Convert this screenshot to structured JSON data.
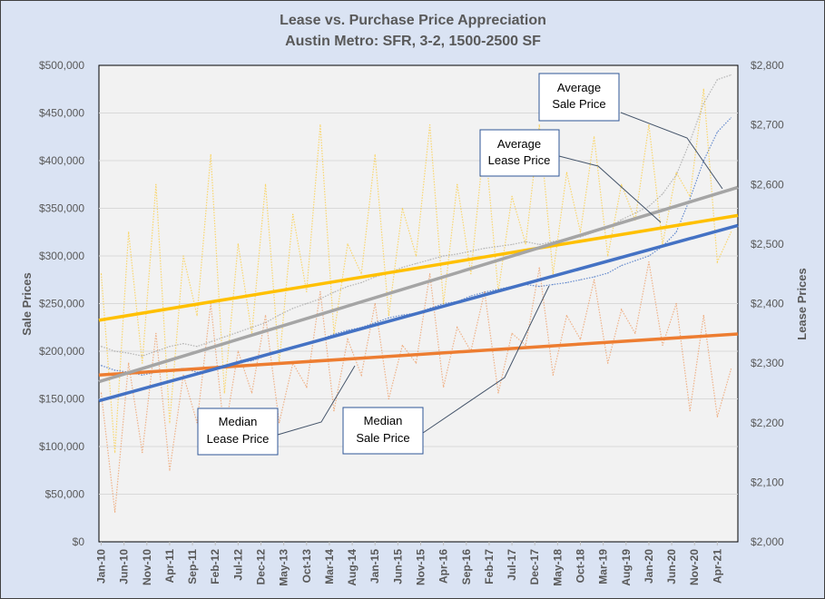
{
  "chart_data": {
    "type": "line",
    "title": [
      "Lease vs. Purchase Price Appreciation",
      "Austin Metro:  SFR, 3-2, 1500-2500 SF"
    ],
    "ylabel": "Sale Prices",
    "y2label": "Lease Prices",
    "ylim": [
      0,
      500000
    ],
    "y2lim": [
      2000,
      2800
    ],
    "yticks": [
      "$0",
      "$50,000",
      "$100,000",
      "$150,000",
      "$200,000",
      "$250,000",
      "$300,000",
      "$350,000",
      "$400,000",
      "$450,000",
      "$500,000"
    ],
    "y2ticks": [
      "$2,000",
      "$2,100",
      "$2,200",
      "$2,300",
      "$2,400",
      "$2,500",
      "$2,600",
      "$2,700",
      "$2,800"
    ],
    "xticks": [
      "Jan-10",
      "Jun-10",
      "Nov-10",
      "Apr-11",
      "Sep-11",
      "Feb-12",
      "Jul-12",
      "Dec-12",
      "May-13",
      "Oct-13",
      "Mar-14",
      "Aug-14",
      "Jan-15",
      "Jun-15",
      "Nov-15",
      "Apr-16",
      "Sep-16",
      "Feb-17",
      "Jul-17",
      "Dec-17",
      "May-18",
      "Oct-18",
      "Mar-19",
      "Aug-19",
      "Jan-20",
      "Jun-20",
      "Nov-20",
      "Apr-21"
    ],
    "grid": true,
    "dates": [
      "Jan-10",
      "Apr-10",
      "Jul-10",
      "Oct-10",
      "Jan-11",
      "Apr-11",
      "Jul-11",
      "Oct-11",
      "Jan-12",
      "Apr-12",
      "Jul-12",
      "Oct-12",
      "Jan-13",
      "Apr-13",
      "Jul-13",
      "Oct-13",
      "Jan-14",
      "Apr-14",
      "Jul-14",
      "Oct-14",
      "Jan-15",
      "Apr-15",
      "Jul-15",
      "Oct-15",
      "Jan-16",
      "Apr-16",
      "Jul-16",
      "Oct-16",
      "Jan-17",
      "Apr-17",
      "Jul-17",
      "Oct-17",
      "Jan-18",
      "Apr-18",
      "Jul-18",
      "Oct-18",
      "Jan-19",
      "Apr-19",
      "Jul-19",
      "Oct-19",
      "Jan-20",
      "Apr-20",
      "Jul-20",
      "Oct-20",
      "Jan-21",
      "Apr-21",
      "Jul-21"
    ],
    "series": [
      {
        "name": "Median Sale Price",
        "axis": "left",
        "color": "#4472c4",
        "values": [
          185000,
          180000,
          178000,
          175000,
          178000,
          180000,
          182000,
          178000,
          180000,
          185000,
          188000,
          190000,
          195000,
          200000,
          205000,
          208000,
          212000,
          218000,
          222000,
          225000,
          230000,
          235000,
          238000,
          240000,
          245000,
          250000,
          252000,
          258000,
          262000,
          265000,
          268000,
          270000,
          268000,
          270000,
          272000,
          275000,
          278000,
          282000,
          290000,
          295000,
          300000,
          310000,
          325000,
          360000,
          400000,
          430000,
          445000
        ]
      },
      {
        "name": "Average Sale Price",
        "axis": "left",
        "color": "#a5a5a5",
        "values": [
          205000,
          200000,
          198000,
          195000,
          200000,
          205000,
          208000,
          205000,
          210000,
          215000,
          220000,
          225000,
          230000,
          238000,
          245000,
          250000,
          255000,
          262000,
          268000,
          272000,
          278000,
          282000,
          288000,
          292000,
          296000,
          300000,
          302000,
          305000,
          308000,
          310000,
          312000,
          315000,
          312000,
          315000,
          318000,
          320000,
          325000,
          330000,
          338000,
          345000,
          352000,
          365000,
          385000,
          420000,
          460000,
          485000,
          490000
        ]
      },
      {
        "name": "Average Lease Price",
        "axis": "right",
        "color": "#ffc000",
        "values": [
          2450,
          2150,
          2520,
          2300,
          2600,
          2200,
          2480,
          2380,
          2650,
          2250,
          2500,
          2350,
          2600,
          2300,
          2550,
          2420,
          2700,
          2350,
          2500,
          2450,
          2650,
          2380,
          2560,
          2480,
          2700,
          2400,
          2600,
          2450,
          2680,
          2420,
          2580,
          2500,
          2700,
          2450,
          2620,
          2520,
          2680,
          2480,
          2600,
          2540,
          2700,
          2500,
          2620,
          2580,
          2760,
          2470,
          2520
        ]
      },
      {
        "name": "Median Lease Price",
        "axis": "right",
        "color": "#ed7d31",
        "values": [
          2250,
          2050,
          2300,
          2150,
          2350,
          2120,
          2280,
          2200,
          2400,
          2180,
          2320,
          2250,
          2380,
          2200,
          2300,
          2260,
          2420,
          2220,
          2340,
          2280,
          2400,
          2240,
          2330,
          2300,
          2450,
          2260,
          2360,
          2320,
          2420,
          2250,
          2350,
          2330,
          2460,
          2280,
          2380,
          2340,
          2440,
          2300,
          2390,
          2350,
          2470,
          2330,
          2400,
          2220,
          2380,
          2210,
          2290
        ]
      }
    ],
    "trendlines": [
      {
        "series": "Median Sale Price",
        "axis": "left",
        "color": "#4472c4",
        "start": 148000,
        "end": 332000
      },
      {
        "series": "Average Sale Price",
        "axis": "left",
        "color": "#a5a5a5",
        "start": 168000,
        "end": 372000
      },
      {
        "series": "Average Lease Price",
        "axis": "right",
        "color": "#ffc000",
        "start": 2372,
        "end": 2548
      },
      {
        "series": "Median Lease Price",
        "axis": "right",
        "color": "#ed7d31",
        "start": 2280,
        "end": 2349
      }
    ],
    "annotations": [
      {
        "line1": "Average",
        "line2": "Sale Price"
      },
      {
        "line1": "Average",
        "line2": "Lease Price"
      },
      {
        "line1": "Median",
        "line2": "Lease Price"
      },
      {
        "line1": "Median",
        "line2": "Sale Price"
      }
    ]
  }
}
